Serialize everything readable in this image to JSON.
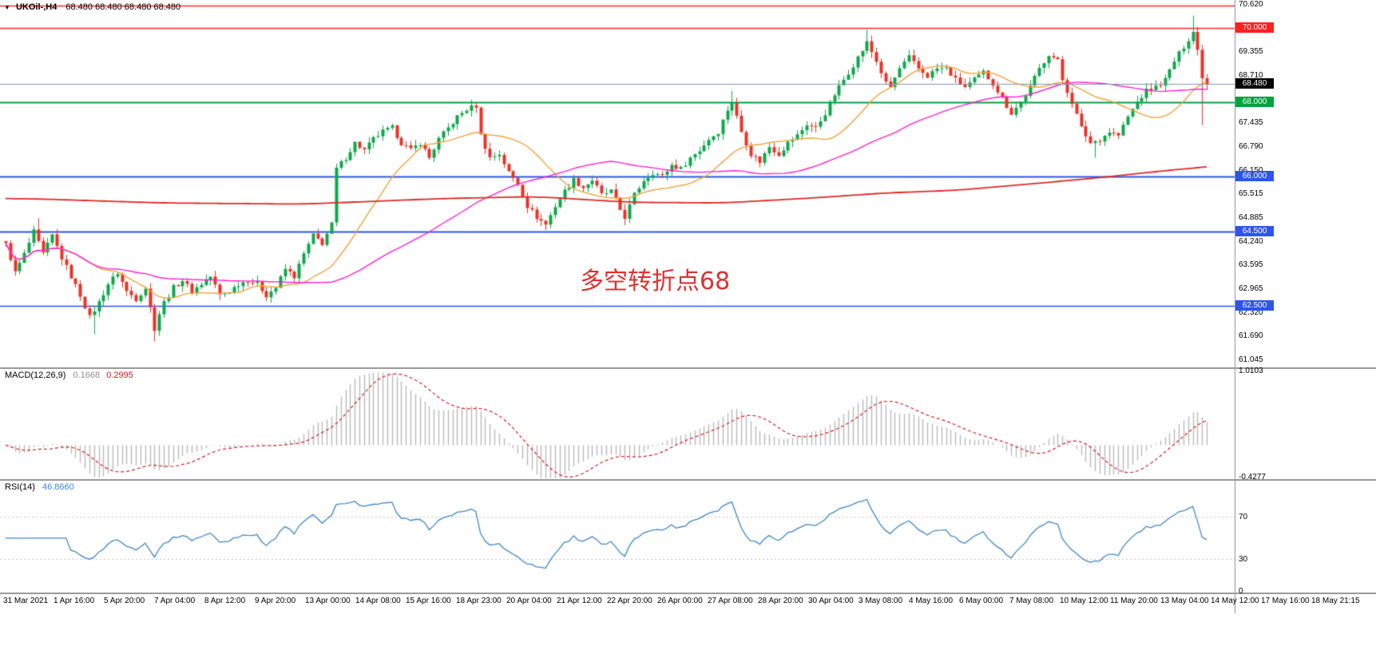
{
  "title_bar": {
    "dropdown_icon": "▼",
    "symbol_timeframe": "UKOil-,H4",
    "ohlc_values": "68.480 68.480 68.480 68.480"
  },
  "annotation": {
    "text": "多空转折点68",
    "color": "#e03030"
  },
  "macd_panel": {
    "name": "MACD(12,26,9)",
    "main_value": "0.1668",
    "signal_value": "0.2995",
    "axis_labels": [
      {
        "text": "1.0103",
        "value": 1.0103
      },
      {
        "text": "-0.4277",
        "value": -0.4277
      }
    ]
  },
  "rsi_panel": {
    "name": "RSI(14)",
    "value": "46.8660",
    "axis_labels": [
      {
        "text": "70",
        "value": 70
      },
      {
        "text": "30",
        "value": 30
      },
      {
        "text": "0",
        "value": 0
      }
    ]
  },
  "price_axis": {
    "labels": [
      {
        "text": "70.620",
        "price": 70.62,
        "style": "plain"
      },
      {
        "text": "70.000",
        "price": 70.0,
        "style": "badge",
        "bg": "#ff2020"
      },
      {
        "text": "69.355",
        "price": 69.355,
        "style": "plain"
      },
      {
        "text": "68.710",
        "price": 68.71,
        "style": "plain"
      },
      {
        "text": "68.480",
        "price": 68.48,
        "style": "badge",
        "bg": "#000000"
      },
      {
        "text": "68.000",
        "price": 68.0,
        "style": "badge",
        "bg": "#00a23e"
      },
      {
        "text": "67.435",
        "price": 67.435,
        "style": "plain"
      },
      {
        "text": "66.790",
        "price": 66.79,
        "style": "plain"
      },
      {
        "text": "66.150",
        "price": 66.15,
        "style": "plain"
      },
      {
        "text": "66.000",
        "price": 66.0,
        "style": "badge",
        "bg": "#2e55e8"
      },
      {
        "text": "65.515",
        "price": 65.515,
        "style": "plain"
      },
      {
        "text": "64.885",
        "price": 64.885,
        "style": "plain"
      },
      {
        "text": "64.500",
        "price": 64.5,
        "style": "badge",
        "bg": "#2e55e8"
      },
      {
        "text": "64.240",
        "price": 64.24,
        "style": "plain"
      },
      {
        "text": "63.595",
        "price": 63.595,
        "style": "plain"
      },
      {
        "text": "62.965",
        "price": 62.965,
        "style": "plain"
      },
      {
        "text": "62.500",
        "price": 62.5,
        "style": "badge",
        "bg": "#2e55e8"
      },
      {
        "text": "62.320",
        "price": 62.32,
        "style": "plain"
      },
      {
        "text": "61.690",
        "price": 61.69,
        "style": "plain"
      },
      {
        "text": "61.045",
        "price": 61.045,
        "style": "plain"
      }
    ]
  },
  "time_axis": {
    "labels": [
      "31 Mar 2021",
      "1 Apr 16:00",
      "5 Apr 20:00",
      "7 Apr 04:00",
      "8 Apr 12:00",
      "9 Apr 20:00",
      "13 Apr 00:00",
      "14 Apr 08:00",
      "15 Apr 16:00",
      "18 Apr 23:00",
      "20 Apr 04:00",
      "21 Apr 12:00",
      "22 Apr 20:00",
      "26 Apr 00:00",
      "27 Apr 08:00",
      "28 Apr 20:00",
      "30 Apr 04:00",
      "3 May 08:00",
      "4 May 16:00",
      "6 May 00:00",
      "7 May 08:00",
      "10 May 12:00",
      "11 May 20:00",
      "13 May 04:00",
      "14 May 12:00",
      "17 May 16:00",
      "18 May 21:15"
    ]
  },
  "chart_data": {
    "type": "candlestick",
    "symbol": "UKOil-",
    "timeframe": "H4",
    "current_price": 68.48,
    "price_axis_range": [
      61.045,
      70.62
    ],
    "bars_count": 259,
    "up_color": "#0ca94a",
    "down_color": "#ee3126",
    "close_anchors": [
      [
        0,
        64.2
      ],
      [
        2,
        63.4
      ],
      [
        4,
        63.9
      ],
      [
        6,
        64.5
      ],
      [
        8,
        63.9
      ],
      [
        10,
        64.4
      ],
      [
        12,
        63.8
      ],
      [
        14,
        63.3
      ],
      [
        16,
        62.8
      ],
      [
        18,
        62.2
      ],
      [
        20,
        62.6
      ],
      [
        22,
        63.1
      ],
      [
        24,
        63.4
      ],
      [
        26,
        62.9
      ],
      [
        28,
        62.7
      ],
      [
        30,
        63.0
      ],
      [
        32,
        61.9
      ],
      [
        33,
        62.3
      ],
      [
        34,
        62.6
      ],
      [
        36,
        63.0
      ],
      [
        38,
        63.2
      ],
      [
        40,
        62.9
      ],
      [
        42,
        63.1
      ],
      [
        44,
        63.3
      ],
      [
        46,
        62.8
      ],
      [
        48,
        62.9
      ],
      [
        50,
        63.1
      ],
      [
        52,
        63.2
      ],
      [
        54,
        63.1
      ],
      [
        56,
        62.8
      ],
      [
        58,
        63.0
      ],
      [
        60,
        63.5
      ],
      [
        62,
        63.3
      ],
      [
        64,
        63.9
      ],
      [
        66,
        64.4
      ],
      [
        68,
        64.2
      ],
      [
        70,
        64.7
      ],
      [
        71,
        66.2
      ],
      [
        73,
        66.5
      ],
      [
        75,
        66.9
      ],
      [
        77,
        66.7
      ],
      [
        79,
        67.0
      ],
      [
        81,
        67.2
      ],
      [
        83,
        67.3
      ],
      [
        85,
        66.9
      ],
      [
        87,
        66.7
      ],
      [
        89,
        66.9
      ],
      [
        91,
        66.5
      ],
      [
        93,
        67.0
      ],
      [
        95,
        67.3
      ],
      [
        97,
        67.6
      ],
      [
        99,
        67.8
      ],
      [
        101,
        67.9
      ],
      [
        102,
        67.1
      ],
      [
        104,
        66.5
      ],
      [
        106,
        66.6
      ],
      [
        108,
        66.1
      ],
      [
        110,
        65.8
      ],
      [
        112,
        65.2
      ],
      [
        114,
        64.9
      ],
      [
        116,
        64.7
      ],
      [
        118,
        65.2
      ],
      [
        120,
        65.6
      ],
      [
        122,
        65.9
      ],
      [
        124,
        65.7
      ],
      [
        126,
        65.9
      ],
      [
        128,
        65.5
      ],
      [
        130,
        65.6
      ],
      [
        132,
        65.1
      ],
      [
        133,
        64.9
      ],
      [
        135,
        65.5
      ],
      [
        137,
        65.9
      ],
      [
        139,
        66.1
      ],
      [
        141,
        66.0
      ],
      [
        143,
        66.3
      ],
      [
        145,
        66.2
      ],
      [
        147,
        66.5
      ],
      [
        149,
        66.7
      ],
      [
        151,
        67.0
      ],
      [
        153,
        67.2
      ],
      [
        155,
        67.8
      ],
      [
        156,
        68.0
      ],
      [
        158,
        67.2
      ],
      [
        160,
        66.6
      ],
      [
        162,
        66.4
      ],
      [
        164,
        66.8
      ],
      [
        166,
        66.6
      ],
      [
        168,
        66.9
      ],
      [
        170,
        67.1
      ],
      [
        172,
        67.4
      ],
      [
        174,
        67.3
      ],
      [
        176,
        67.7
      ],
      [
        178,
        68.2
      ],
      [
        180,
        68.6
      ],
      [
        182,
        69.0
      ],
      [
        184,
        69.4
      ],
      [
        185,
        69.6
      ],
      [
        187,
        69.1
      ],
      [
        189,
        68.5
      ],
      [
        190,
        68.4
      ],
      [
        192,
        68.9
      ],
      [
        194,
        69.2
      ],
      [
        196,
        68.9
      ],
      [
        198,
        68.7
      ],
      [
        200,
        68.9
      ],
      [
        202,
        68.9
      ],
      [
        204,
        68.6
      ],
      [
        206,
        68.4
      ],
      [
        208,
        68.6
      ],
      [
        210,
        68.8
      ],
      [
        212,
        68.5
      ],
      [
        214,
        68.1
      ],
      [
        216,
        67.7
      ],
      [
        218,
        68.0
      ],
      [
        220,
        68.4
      ],
      [
        222,
        68.9
      ],
      [
        224,
        69.3
      ],
      [
        226,
        69.1
      ],
      [
        227,
        68.6
      ],
      [
        229,
        68.0
      ],
      [
        231,
        67.3
      ],
      [
        233,
        66.9
      ],
      [
        235,
        67.0
      ],
      [
        237,
        67.2
      ],
      [
        239,
        67.1
      ],
      [
        241,
        67.6
      ],
      [
        243,
        68.0
      ],
      [
        245,
        68.3
      ],
      [
        247,
        68.4
      ],
      [
        249,
        68.6
      ],
      [
        251,
        69.1
      ],
      [
        253,
        69.5
      ],
      [
        255,
        69.9
      ],
      [
        256,
        69.4
      ],
      [
        257,
        68.7
      ],
      [
        258,
        68.48
      ]
    ],
    "wick_highs": [
      [
        7,
        64.87
      ],
      [
        101,
        67.98
      ],
      [
        156,
        68.3
      ],
      [
        185,
        69.95
      ],
      [
        255,
        70.33
      ]
    ],
    "wick_lows": [
      [
        19,
        61.75
      ],
      [
        32,
        61.55
      ],
      [
        116,
        64.55
      ],
      [
        133,
        64.68
      ],
      [
        234,
        66.5
      ],
      [
        257,
        67.38
      ]
    ],
    "horizontal_lines": [
      {
        "price": 70.6,
        "color": "#ff2a2a",
        "width": 1.5,
        "label": ""
      },
      {
        "price": 70.0,
        "color": "#ff2a2a",
        "width": 1.5,
        "label": "70.000"
      },
      {
        "price": 68.0,
        "color": "#00a23e",
        "width": 2,
        "label": "68.000"
      },
      {
        "price": 66.0,
        "color": "#2e55e8",
        "width": 2,
        "label": "66.000"
      },
      {
        "price": 64.5,
        "color": "#2e55e8",
        "width": 2,
        "label": "64.500"
      },
      {
        "price": 62.5,
        "color": "#2e55e8",
        "width": 1.5,
        "label": "62.500"
      }
    ],
    "current_price_line": {
      "price": 68.48,
      "color": "#8093b0",
      "width": 1,
      "label": "68.480"
    },
    "moving_averages": [
      {
        "name": "sma-fast",
        "color": "#f2a23a",
        "period": 20
      },
      {
        "name": "sma-mid",
        "color": "#ff1fd4",
        "period": 60
      },
      {
        "name": "sma-slow",
        "color": "#e02828",
        "anchors": [
          [
            0,
            65.4
          ],
          [
            30,
            65.28
          ],
          [
            60,
            65.25
          ],
          [
            90,
            65.4
          ],
          [
            110,
            65.45
          ],
          [
            130,
            65.3
          ],
          [
            150,
            65.28
          ],
          [
            170,
            65.42
          ],
          [
            185,
            65.55
          ],
          [
            200,
            65.62
          ],
          [
            215,
            65.78
          ],
          [
            230,
            65.95
          ],
          [
            245,
            66.15
          ],
          [
            258,
            66.3
          ]
        ]
      }
    ],
    "macd": {
      "fast": 12,
      "slow": 26,
      "signal_period": 9,
      "current_main": 0.1668,
      "current_signal": 0.2995,
      "scale_max": 1.0103,
      "scale_min": -0.4277,
      "histogram_color": "#b9b9b9",
      "signal_color": "#d42020"
    },
    "rsi": {
      "period": 14,
      "current": 46.866,
      "levels": [
        70,
        30
      ],
      "scale": [
        0,
        100
      ],
      "line_color": "#3d87c9",
      "level_color": "#c4c4c4"
    }
  }
}
